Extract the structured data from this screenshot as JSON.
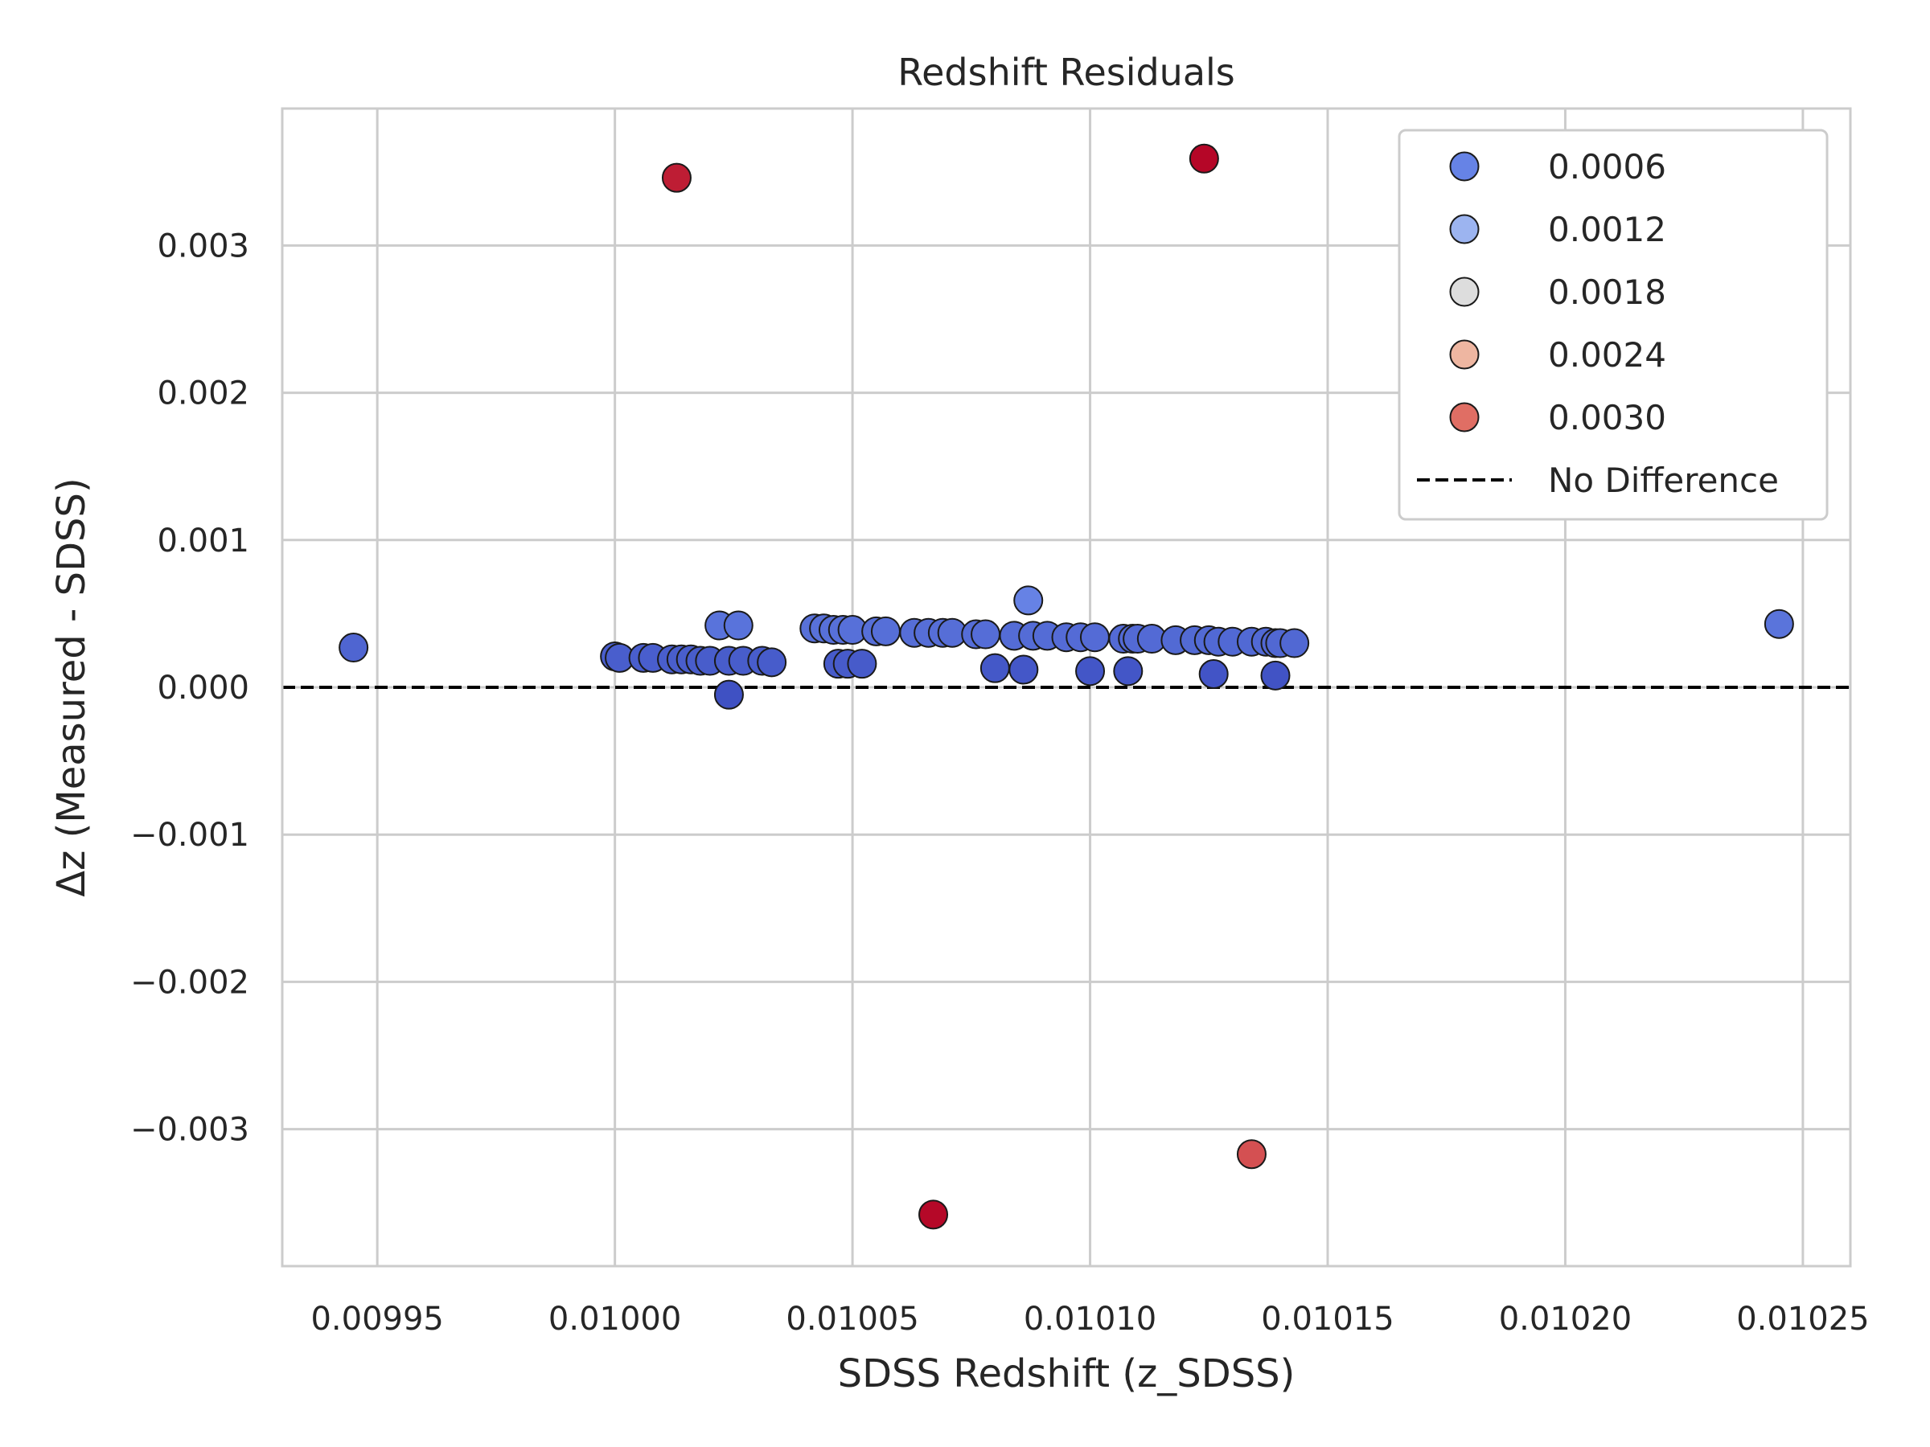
{
  "chart_data": {
    "type": "scatter",
    "title": "Redshift Residuals",
    "xlabel": "SDSS Redshift (z_SDSS)",
    "ylabel": "Δz (Measured - SDSS)",
    "xlim": [
      0.00993,
      0.01026
    ],
    "ylim": [
      -0.00393,
      0.00393
    ],
    "xticks": [
      0.00995,
      0.01,
      0.01005,
      0.0101,
      0.01015,
      0.0102,
      0.01025
    ],
    "xtick_labels": [
      "0.00995",
      "0.01000",
      "0.01005",
      "0.01010",
      "0.01015",
      "0.01020",
      "0.01025"
    ],
    "yticks": [
      -0.003,
      -0.002,
      -0.001,
      0.0,
      0.001,
      0.002,
      0.003
    ],
    "ytick_labels": [
      "−0.003",
      "−0.002",
      "−0.001",
      "0.000",
      "0.001",
      "0.002",
      "0.003"
    ],
    "grid": true,
    "legend_position": "top-right",
    "color_scale": "coolwarm",
    "color_range": [
      0.0,
      0.0036
    ],
    "legend": [
      {
        "label": "0.0006",
        "value": 0.0006
      },
      {
        "label": "0.0012",
        "value": 0.0012
      },
      {
        "label": "0.0018",
        "value": 0.0018
      },
      {
        "label": "0.0024",
        "value": 0.0024
      },
      {
        "label": "0.0030",
        "value": 0.003
      },
      {
        "label": "No Difference",
        "value": null
      }
    ],
    "reference_line": {
      "y": 0.0,
      "style": "dashed",
      "color": "#000000"
    },
    "points": [
      [
        0.009945,
        0.00027
      ],
      [
        0.01,
        0.00021
      ],
      [
        0.010001,
        0.0002
      ],
      [
        0.010006,
        0.0002
      ],
      [
        0.010008,
        0.0002
      ],
      [
        0.010012,
        0.00019
      ],
      [
        0.010014,
        0.00019
      ],
      [
        0.010016,
        0.00019
      ],
      [
        0.010018,
        0.00018
      ],
      [
        0.01002,
        0.00018
      ],
      [
        0.010022,
        0.00042
      ],
      [
        0.010024,
        0.00018
      ],
      [
        0.010026,
        0.00042
      ],
      [
        0.010027,
        0.00018
      ],
      [
        0.010031,
        0.00018
      ],
      [
        0.010033,
        0.00017
      ],
      [
        0.010024,
        -5e-05
      ],
      [
        0.010013,
        0.00346
      ],
      [
        0.010042,
        0.0004
      ],
      [
        0.010044,
        0.0004
      ],
      [
        0.010046,
        0.00039
      ],
      [
        0.010047,
        0.00016
      ],
      [
        0.010048,
        0.00039
      ],
      [
        0.010049,
        0.00016
      ],
      [
        0.01005,
        0.00039
      ],
      [
        0.010052,
        0.00016
      ],
      [
        0.010055,
        0.00038
      ],
      [
        0.010057,
        0.00038
      ],
      [
        0.010063,
        0.00037
      ],
      [
        0.010066,
        0.00037
      ],
      [
        0.010067,
        -0.00358
      ],
      [
        0.010069,
        0.00037
      ],
      [
        0.010071,
        0.00037
      ],
      [
        0.010076,
        0.00036
      ],
      [
        0.010078,
        0.00036
      ],
      [
        0.01008,
        0.00013
      ],
      [
        0.010084,
        0.00035
      ],
      [
        0.010086,
        0.00012
      ],
      [
        0.010087,
        0.00059
      ],
      [
        0.010088,
        0.00035
      ],
      [
        0.010091,
        0.00035
      ],
      [
        0.010095,
        0.00034
      ],
      [
        0.010098,
        0.00034
      ],
      [
        0.0101,
        0.00011
      ],
      [
        0.010101,
        0.00034
      ],
      [
        0.010107,
        0.00033
      ],
      [
        0.010108,
        0.00011
      ],
      [
        0.010109,
        0.00033
      ],
      [
        0.01011,
        0.00033
      ],
      [
        0.010113,
        0.00033
      ],
      [
        0.010118,
        0.00032
      ],
      [
        0.010122,
        0.00032
      ],
      [
        0.010124,
        0.00359
      ],
      [
        0.010125,
        0.00032
      ],
      [
        0.010126,
        9e-05
      ],
      [
        0.010127,
        0.00031
      ],
      [
        0.01013,
        0.00031
      ],
      [
        0.010134,
        0.00031
      ],
      [
        0.010134,
        -0.00317
      ],
      [
        0.010137,
        0.00031
      ],
      [
        0.010139,
        0.0003
      ],
      [
        0.010139,
        8e-05
      ],
      [
        0.01014,
        0.0003
      ],
      [
        0.010143,
        0.0003
      ],
      [
        0.010245,
        0.00043
      ]
    ]
  }
}
